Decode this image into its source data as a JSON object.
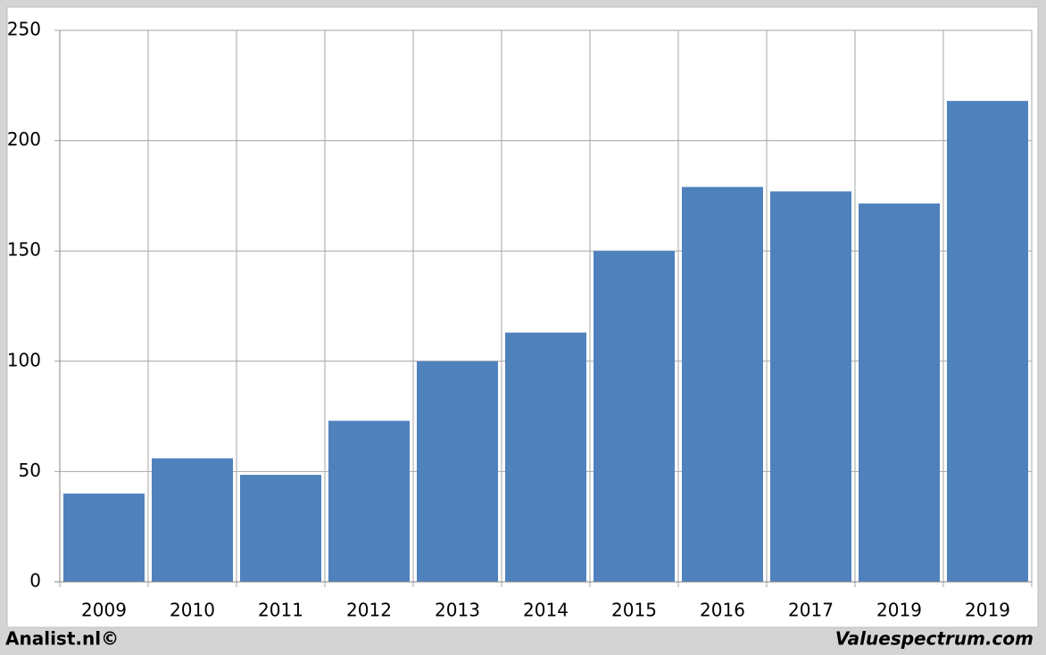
{
  "chart_data": {
    "type": "bar",
    "categories": [
      "2009",
      "2010",
      "2011",
      "2012",
      "2013",
      "2014",
      "2015",
      "2016",
      "2017",
      "2019",
      "2019"
    ],
    "values": [
      40,
      56,
      48.5,
      73,
      100,
      113,
      150,
      179,
      177,
      171.5,
      218
    ],
    "color": "#4f81bd",
    "ylim": [
      0,
      250
    ],
    "yticks": [
      0,
      50,
      100,
      150,
      200,
      250
    ],
    "grid": true,
    "credits": [
      "Analist.nl©",
      "Valuespectrum.com"
    ]
  }
}
